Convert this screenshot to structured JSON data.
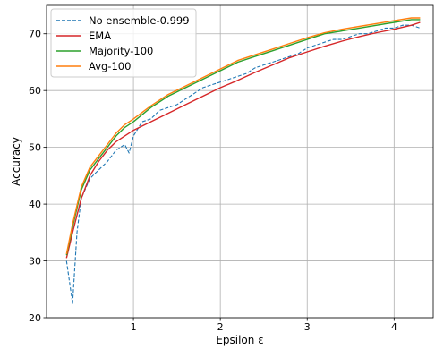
{
  "chart_data": {
    "type": "line",
    "xlabel": "Epsilon ε",
    "ylabel": "Accuracy",
    "xlim": [
      0.0,
      4.45
    ],
    "ylim": [
      20,
      75
    ],
    "xticks": [
      1,
      2,
      3,
      4
    ],
    "yticks": [
      20,
      30,
      40,
      50,
      60,
      70
    ],
    "grid": true,
    "legend_position": "top-left",
    "series": [
      {
        "name": "No ensemble-0.999",
        "color": "#1f77b4",
        "style": "dashed",
        "x": [
          0.23,
          0.3,
          0.35,
          0.4,
          0.5,
          0.6,
          0.7,
          0.8,
          0.9,
          0.95,
          1.0,
          1.1,
          1.2,
          1.3,
          1.4,
          1.5,
          1.6,
          1.7,
          1.8,
          1.9,
          2.0,
          2.1,
          2.2,
          2.3,
          2.4,
          2.5,
          2.6,
          2.7,
          2.8,
          2.9,
          3.0,
          3.1,
          3.2,
          3.3,
          3.4,
          3.5,
          3.6,
          3.7,
          3.8,
          3.9,
          4.0,
          4.1,
          4.2,
          4.3
        ],
        "y": [
          30.0,
          22.5,
          35.0,
          41.0,
          44.5,
          46.0,
          47.5,
          49.5,
          50.5,
          49.0,
          52.0,
          54.5,
          55.0,
          56.5,
          57.0,
          57.5,
          58.5,
          59.5,
          60.5,
          61.0,
          61.5,
          62.0,
          62.5,
          63.0,
          64.0,
          64.5,
          65.0,
          65.5,
          66.0,
          66.5,
          67.5,
          68.0,
          68.5,
          69.0,
          69.0,
          69.5,
          70.0,
          70.0,
          70.5,
          71.0,
          71.0,
          71.5,
          71.5,
          71.0
        ]
      },
      {
        "name": "EMA",
        "color": "#d62728",
        "style": "solid",
        "x": [
          0.23,
          0.3,
          0.4,
          0.5,
          0.6,
          0.7,
          0.8,
          0.9,
          1.0,
          1.2,
          1.4,
          1.6,
          1.8,
          2.0,
          2.2,
          2.4,
          2.6,
          2.8,
          3.0,
          3.2,
          3.4,
          3.6,
          3.8,
          4.0,
          4.2,
          4.3
        ],
        "y": [
          30.5,
          35.0,
          41.0,
          45.0,
          47.5,
          49.5,
          51.0,
          52.0,
          53.0,
          54.5,
          56.0,
          57.5,
          59.0,
          60.5,
          61.8,
          63.2,
          64.5,
          65.8,
          66.8,
          67.8,
          68.7,
          69.5,
          70.2,
          70.8,
          71.5,
          72.0
        ]
      },
      {
        "name": "Majority-100",
        "color": "#2ca02c",
        "style": "solid",
        "x": [
          0.23,
          0.3,
          0.4,
          0.5,
          0.6,
          0.7,
          0.8,
          0.9,
          1.0,
          1.2,
          1.4,
          1.6,
          1.8,
          2.0,
          2.2,
          2.4,
          2.6,
          2.8,
          3.0,
          3.2,
          3.4,
          3.6,
          3.8,
          4.0,
          4.2,
          4.3
        ],
        "y": [
          31.0,
          36.0,
          42.5,
          46.0,
          48.0,
          50.0,
          52.0,
          53.5,
          54.5,
          57.0,
          59.0,
          60.5,
          62.0,
          63.5,
          65.0,
          66.0,
          67.0,
          68.0,
          69.0,
          70.0,
          70.5,
          71.0,
          71.5,
          72.0,
          72.5,
          72.5
        ]
      },
      {
        "name": "Avg-100",
        "color": "#ff7f0e",
        "style": "solid",
        "x": [
          0.23,
          0.3,
          0.4,
          0.5,
          0.6,
          0.7,
          0.8,
          0.9,
          1.0,
          1.2,
          1.4,
          1.6,
          1.8,
          2.0,
          2.2,
          2.4,
          2.6,
          2.8,
          3.0,
          3.2,
          3.4,
          3.6,
          3.8,
          4.0,
          4.2,
          4.3
        ],
        "y": [
          31.2,
          36.5,
          43.0,
          46.5,
          48.5,
          50.5,
          52.5,
          54.0,
          55.0,
          57.3,
          59.3,
          60.8,
          62.3,
          63.8,
          65.3,
          66.3,
          67.3,
          68.3,
          69.3,
          70.2,
          70.8,
          71.3,
          71.8,
          72.3,
          72.8,
          72.8
        ]
      }
    ]
  }
}
